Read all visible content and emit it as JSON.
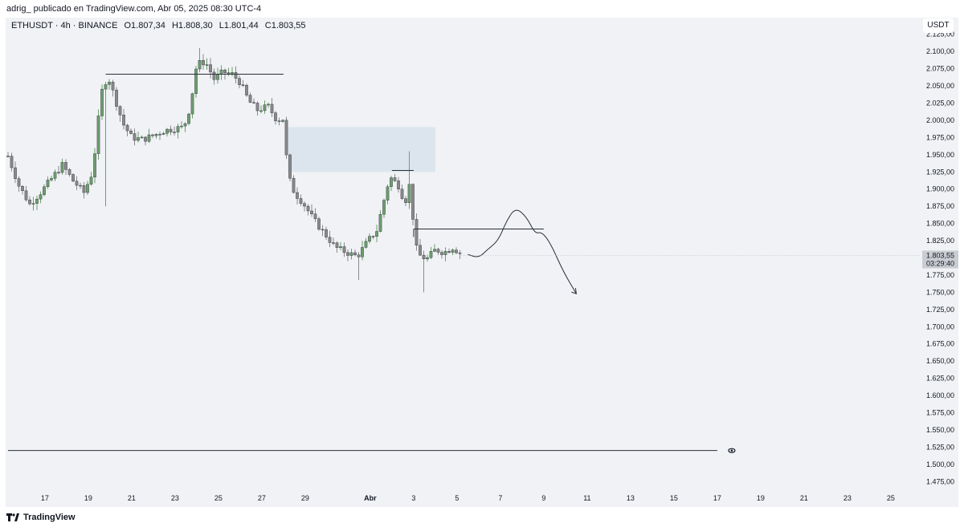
{
  "header": {
    "publish_line": "adrig_ publicado en TradingView.com, Abr 05, 2025 08:30 UTC-4"
  },
  "legend": {
    "symbol": "ETHUSDT · 4h · BINANCE",
    "open": "O1.807,34",
    "high": "H1.808,30",
    "low": "L1.801,44",
    "close": "C1.803,55"
  },
  "currency_label": "USDT",
  "footer": {
    "brand": "TradingView"
  },
  "colors": {
    "up": "#6e9e6e",
    "down": "#8a8a8a",
    "zone": "#dce5ee",
    "background": "#f0f2f5"
  },
  "chart_data": {
    "type": "candlestick",
    "interval": "4h",
    "ylim": [
      1462.5,
      2137.5
    ],
    "y_ticks": [
      2125,
      2100,
      2075,
      2050,
      2025,
      2000,
      1975,
      1950,
      1925,
      1900,
      1875,
      1850,
      1825,
      1800,
      1775,
      1750,
      1725,
      1700,
      1675,
      1650,
      1625,
      1600,
      1575,
      1550,
      1525,
      1500,
      1475
    ],
    "y_tick_labels": [
      "2.125,00",
      "2.100,00",
      "2.075,00",
      "2.050,00",
      "2.025,00",
      "2.000,00",
      "1.975,00",
      "1.950,00",
      "1.925,00",
      "1.900,00",
      "1.875,00",
      "1.850,00",
      "1.825,00",
      "1.800,00",
      "1.775,00",
      "1.750,00",
      "1.725,00",
      "1.700,00",
      "1.675,00",
      "1.650,00",
      "1.625,00",
      "1.600,00",
      "1.575,00",
      "1.550,00",
      "1.525,00",
      "1.500,00",
      "1.475,00"
    ],
    "x_day_range": [
      15.3,
      26.5
    ],
    "x_ticks": [
      {
        "day": 17,
        "label": "17"
      },
      {
        "day": 19,
        "label": "19"
      },
      {
        "day": 21,
        "label": "21"
      },
      {
        "day": 23,
        "label": "23"
      },
      {
        "day": 25,
        "label": "25"
      },
      {
        "day": 27,
        "label": "27"
      },
      {
        "day": 29,
        "label": "29"
      },
      {
        "day": 32,
        "label": "Abr",
        "bold": true
      },
      {
        "day": 34,
        "label": "3"
      },
      {
        "day": 36,
        "label": "5"
      },
      {
        "day": 38,
        "label": "7"
      },
      {
        "day": 40,
        "label": "9"
      },
      {
        "day": 42,
        "label": "11"
      },
      {
        "day": 44,
        "label": "13"
      },
      {
        "day": 46,
        "label": "15"
      },
      {
        "day": 48,
        "label": "17"
      },
      {
        "day": 50,
        "label": "19"
      },
      {
        "day": 52,
        "label": "21"
      },
      {
        "day": 54,
        "label": "23"
      },
      {
        "day": 56,
        "label": "25"
      }
    ],
    "last_price": {
      "value": 1803.55,
      "label": "1.803,55",
      "countdown": "03:29:40"
    },
    "anchor_points": [
      [
        15.3,
        1948
      ],
      [
        15.8,
        1905
      ],
      [
        16.3,
        1878
      ],
      [
        16.8,
        1895
      ],
      [
        17.3,
        1915
      ],
      [
        17.8,
        1935
      ],
      [
        18.3,
        1912
      ],
      [
        18.8,
        1895
      ],
      [
        19.2,
        1925
      ],
      [
        19.6,
        2040
      ],
      [
        19.9,
        2065
      ],
      [
        20.2,
        2035
      ],
      [
        20.6,
        1995
      ],
      [
        21.0,
        1975
      ],
      [
        21.5,
        1972
      ],
      [
        22.0,
        1978
      ],
      [
        22.5,
        1985
      ],
      [
        23.0,
        1988
      ],
      [
        23.4,
        1990
      ],
      [
        23.7,
        2020
      ],
      [
        24.0,
        2082
      ],
      [
        24.4,
        2085
      ],
      [
        24.8,
        2060
      ],
      [
        25.2,
        2070
      ],
      [
        25.6,
        2068
      ],
      [
        26.0,
        2055
      ],
      [
        26.4,
        2028
      ],
      [
        26.8,
        2015
      ],
      [
        27.3,
        2020
      ],
      [
        27.7,
        2000
      ],
      [
        28.0,
        2002
      ],
      [
        28.2,
        1920
      ],
      [
        28.5,
        1895
      ],
      [
        28.9,
        1880
      ],
      [
        29.4,
        1855
      ],
      [
        29.9,
        1835
      ],
      [
        30.4,
        1815
      ],
      [
        30.9,
        1808
      ],
      [
        31.4,
        1802
      ],
      [
        31.9,
        1825
      ],
      [
        32.3,
        1840
      ],
      [
        32.6,
        1880
      ],
      [
        32.9,
        1918
      ],
      [
        33.3,
        1905
      ],
      [
        33.6,
        1880
      ],
      [
        33.9,
        1918
      ],
      [
        34.0,
        1830
      ],
      [
        34.2,
        1805
      ],
      [
        34.6,
        1798
      ],
      [
        35.0,
        1812
      ],
      [
        35.4,
        1808
      ],
      [
        35.8,
        1815
      ],
      [
        36.2,
        1806
      ]
    ],
    "wick_highs": [
      [
        24.1,
        2105
      ],
      [
        33.8,
        1955
      ]
    ],
    "wick_lows": [
      [
        34.4,
        1750
      ],
      [
        31.5,
        1768
      ],
      [
        19.8,
        1875
      ]
    ],
    "annotations": {
      "resistance_lines": [
        {
          "price": 2067,
          "x_start": 19.8,
          "x_end": 28.0
        },
        {
          "price": 1927,
          "x_start": 33.0,
          "x_end": 34.0
        },
        {
          "price": 1842,
          "x_start": 34.0,
          "x_end": 40.0
        }
      ],
      "horizontal_line": {
        "price": 1520,
        "x_start": 15.3,
        "x_end": 48.0,
        "icon": "eye-icon"
      },
      "zone": {
        "price_top": 1990,
        "price_bottom": 1925,
        "x_start": 28.2,
        "x_end": 35.0
      },
      "projection_path": [
        [
          36.5,
          1805
        ],
        [
          37.0,
          1800
        ],
        [
          37.4,
          1812
        ],
        [
          37.9,
          1825
        ],
        [
          38.3,
          1855
        ],
        [
          38.7,
          1873
        ],
        [
          39.2,
          1860
        ],
        [
          39.6,
          1835
        ],
        [
          39.9,
          1838
        ],
        [
          40.3,
          1822
        ],
        [
          40.9,
          1780
        ],
        [
          41.5,
          1748
        ]
      ]
    }
  }
}
